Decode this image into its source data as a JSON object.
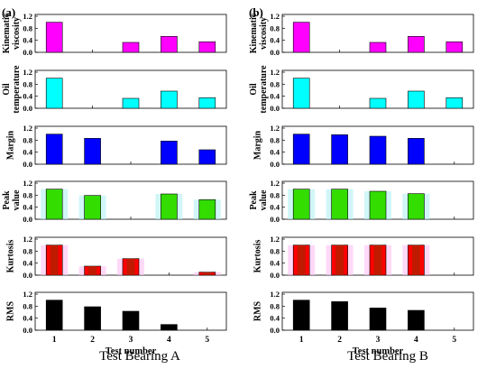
{
  "panels": [
    {
      "label": "(a)",
      "caption": "Test Bearing A"
    },
    {
      "label": "(b)",
      "caption": "Test Bearing B"
    }
  ],
  "chart_data": [
    {
      "type": "bar",
      "panel": "(a)",
      "xlabel": "Test number",
      "categories": [
        "1",
        "2",
        "3",
        "4",
        "5"
      ],
      "ylim": [
        0,
        1.2
      ],
      "yticks": [
        "0.0",
        "0.4",
        "0.8",
        "1.2"
      ],
      "subplots": [
        {
          "ylabel": "Kinematic viscosity",
          "color": "#ff00ff",
          "values": [
            1.0,
            0.0,
            0.33,
            0.53,
            0.35
          ]
        },
        {
          "ylabel": "Oil temperature",
          "color": "#00ffff",
          "values": [
            1.0,
            0.0,
            0.33,
            0.57,
            0.35
          ]
        },
        {
          "ylabel": "Margin",
          "color": "#0000ff",
          "values": [
            1.0,
            0.86,
            0.0,
            0.77,
            0.48
          ]
        },
        {
          "ylabel": "Peak value",
          "color": "#33dd00",
          "halo": "#b3f0f4",
          "values": [
            1.0,
            0.79,
            0.0,
            0.84,
            0.65
          ]
        },
        {
          "ylabel": "Kurtosis",
          "color": "#ff0000",
          "inner": "#b02000",
          "halo": "#ffc0f4",
          "values": [
            1.0,
            0.3,
            0.55,
            0.0,
            0.1
          ]
        },
        {
          "ylabel": "RMS",
          "color": "#000000",
          "values": [
            1.0,
            0.78,
            0.63,
            0.19,
            0.0
          ]
        }
      ]
    },
    {
      "type": "bar",
      "panel": "(b)",
      "xlabel": "Test number",
      "categories": [
        "1",
        "2",
        "3",
        "4",
        "5"
      ],
      "ylim": [
        0,
        1.2
      ],
      "yticks": [
        "0.0",
        "0.4",
        "0.8",
        "1.2"
      ],
      "subplots": [
        {
          "ylabel": "Kinematic viscosity",
          "color": "#ff00ff",
          "values": [
            1.0,
            0.0,
            0.33,
            0.53,
            0.35
          ]
        },
        {
          "ylabel": "Oil temperature",
          "color": "#00ffff",
          "values": [
            1.0,
            0.0,
            0.33,
            0.57,
            0.35
          ]
        },
        {
          "ylabel": "Margin",
          "color": "#0000ff",
          "values": [
            1.0,
            0.98,
            0.93,
            0.86,
            0.0
          ]
        },
        {
          "ylabel": "Peak value",
          "color": "#33dd00",
          "halo": "#b3f0f4",
          "values": [
            1.0,
            1.0,
            0.93,
            0.85,
            0.0
          ]
        },
        {
          "ylabel": "Kurtosis",
          "color": "#ff0000",
          "inner": "#b02000",
          "halo": "#ffc0f4",
          "values": [
            1.0,
            1.0,
            1.0,
            1.0,
            0.0
          ]
        },
        {
          "ylabel": "RMS",
          "color": "#000000",
          "values": [
            1.0,
            0.95,
            0.74,
            0.66,
            0.0
          ]
        }
      ]
    }
  ]
}
